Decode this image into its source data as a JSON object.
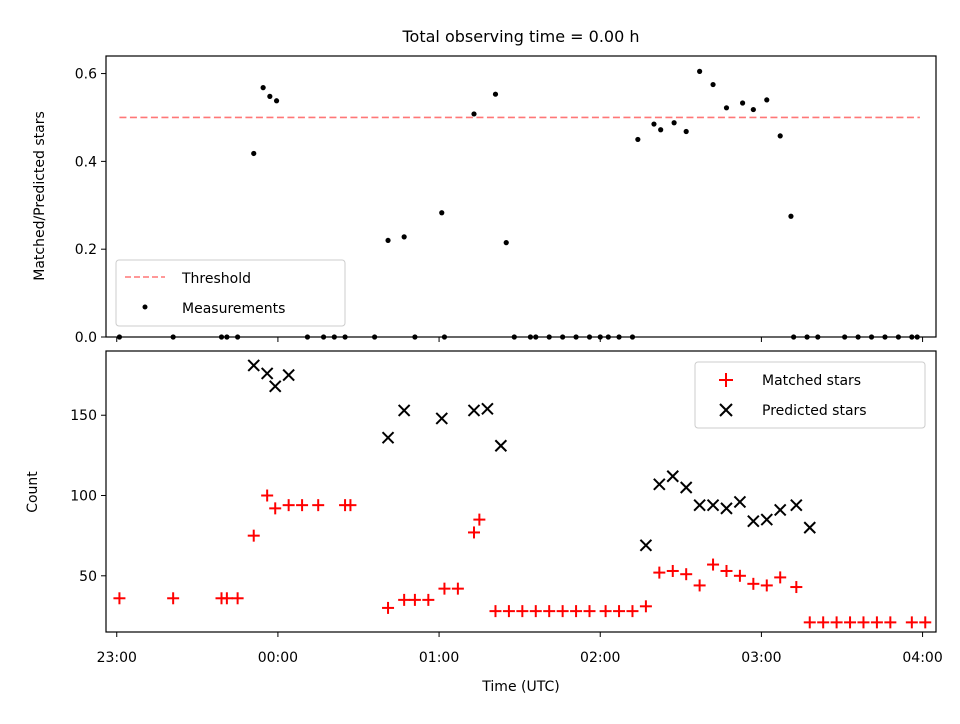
{
  "colors": {
    "threshold": "#ff7777",
    "measurements": "#000000",
    "matched": "#ff0000",
    "predicted": "#000000"
  },
  "chart_data": [
    {
      "type": "scatter",
      "title": "Total observing time = 0.00 h",
      "ylabel": "Matched/Predicted stars",
      "xlabel": "",
      "xlim": [
        -4,
        305
      ],
      "ylim": [
        0,
        0.64
      ],
      "yticks": [
        0.0,
        0.2,
        0.4,
        0.6
      ],
      "ytick_labels": [
        "0.0",
        "0.2",
        "0.4",
        "0.6"
      ],
      "grid": false,
      "legend_position": "lower-left",
      "threshold": {
        "name": "Threshold",
        "x": [
          1,
          299
        ],
        "y": [
          0.5,
          0.5
        ],
        "style": "dashed"
      },
      "series": [
        {
          "name": "Measurements",
          "x": [
            1,
            21,
            39,
            41,
            45,
            51,
            54.5,
            57,
            59.5,
            71,
            77,
            81,
            85,
            96,
            101,
            107,
            111,
            121,
            122,
            133,
            141,
            145,
            148,
            154,
            156,
            161,
            166,
            171,
            176,
            180,
            183,
            187,
            192,
            194,
            200,
            202.5,
            207.5,
            212,
            217,
            222,
            227,
            233,
            237,
            242,
            247,
            251,
            252,
            257,
            261,
            271,
            276,
            281,
            286,
            291,
            296,
            298
          ],
          "y": [
            0,
            0,
            0,
            0,
            0,
            0.418,
            0.568,
            0.548,
            0.538,
            0,
            0,
            0,
            0,
            0,
            0.22,
            0.228,
            0,
            0.283,
            0,
            0.508,
            0.553,
            0.215,
            0,
            0,
            0,
            0,
            0,
            0,
            0,
            0,
            0,
            0,
            0,
            0.45,
            0.485,
            0.472,
            0.488,
            0.468,
            0.605,
            0.575,
            0.522,
            0.533,
            0.518,
            0.54,
            0.458,
            0.275,
            0,
            0,
            0,
            0,
            0,
            0,
            0,
            0,
            0,
            0
          ]
        }
      ]
    },
    {
      "type": "scatter",
      "title": "",
      "ylabel": "Count",
      "xlabel": "Time (UTC)",
      "xlim": [
        -4,
        305
      ],
      "ylim": [
        15,
        190
      ],
      "yticks": [
        50,
        100,
        150
      ],
      "ytick_labels": [
        "50",
        "100",
        "150"
      ],
      "xticks": [
        0,
        60,
        120,
        180,
        240,
        300
      ],
      "xtick_labels": [
        "23:00",
        "00:00",
        "01:00",
        "02:00",
        "03:00",
        "04:00"
      ],
      "grid": false,
      "legend_position": "top-right",
      "series": [
        {
          "name": "Matched stars",
          "marker": "plus",
          "x": [
            1,
            21,
            39,
            41,
            45,
            51,
            56,
            59,
            64,
            69,
            75,
            85,
            87,
            101,
            107,
            111,
            116,
            122,
            127,
            133,
            135,
            141,
            146,
            151,
            156,
            161,
            166,
            171,
            176,
            182,
            187,
            192,
            197,
            202,
            207,
            212,
            217,
            222,
            227,
            232,
            237,
            242,
            247,
            253,
            258,
            263,
            268,
            273,
            278,
            283,
            288,
            296,
            301
          ],
          "y": [
            36,
            36,
            36,
            36,
            36,
            75,
            100,
            92,
            94,
            94,
            94,
            94,
            94,
            30,
            35,
            35,
            35,
            42,
            42,
            77,
            85,
            28,
            28,
            28,
            28,
            28,
            28,
            28,
            28,
            28,
            28,
            28,
            31,
            52,
            53,
            51,
            44,
            57,
            53,
            50,
            45,
            44,
            49,
            43,
            21,
            21,
            21,
            21,
            21,
            21,
            21,
            21,
            21
          ]
        },
        {
          "name": "Predicted stars",
          "marker": "x",
          "x": [
            51,
            56,
            59,
            64,
            101,
            107,
            121,
            133,
            138,
            143,
            197,
            202,
            207,
            212,
            217,
            222,
            227,
            232,
            237,
            242,
            247,
            253,
            258
          ],
          "y": [
            181,
            176,
            168,
            175,
            136,
            153,
            148,
            153,
            154,
            131,
            69,
            107,
            112,
            105,
            94,
            94,
            92,
            96,
            84,
            85,
            91,
            94,
            80
          ]
        }
      ]
    }
  ]
}
